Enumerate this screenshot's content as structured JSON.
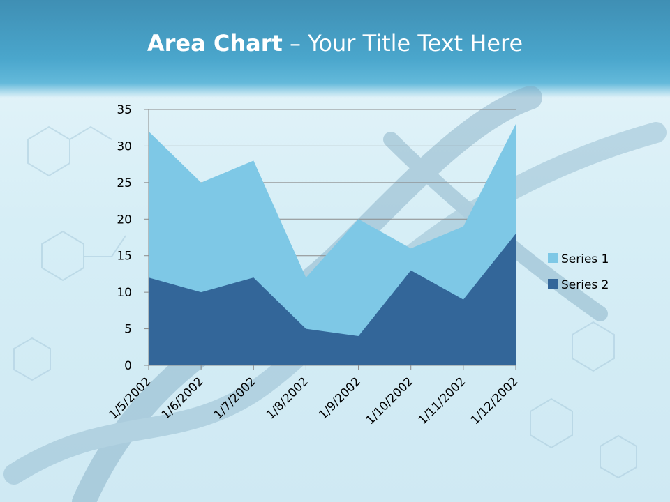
{
  "slide": {
    "title_bold": "Area Chart",
    "title_rest": " – Your Title Text Here"
  },
  "colors": {
    "header": "#4aa6cc",
    "series1": "#7ec8e6",
    "series2": "#336699",
    "gridline": "#8a8a8a"
  },
  "chart_data": {
    "type": "area",
    "categories": [
      "1/5/2002",
      "1/6/2002",
      "1/7/2002",
      "1/8/2002",
      "1/9/2002",
      "1/10/2002",
      "1/11/2002",
      "1/12/2002"
    ],
    "series": [
      {
        "name": "Series 1",
        "values": [
          32,
          25,
          28,
          12,
          20,
          16,
          19,
          33
        ]
      },
      {
        "name": "Series 2",
        "values": [
          12,
          10,
          12,
          5,
          4,
          13,
          9,
          18
        ]
      }
    ],
    "y_ticks": [
      "0",
      "5",
      "10",
      "15",
      "20",
      "25",
      "30",
      "35"
    ],
    "ylim": [
      0,
      35
    ],
    "grid": true,
    "legend": "right"
  }
}
